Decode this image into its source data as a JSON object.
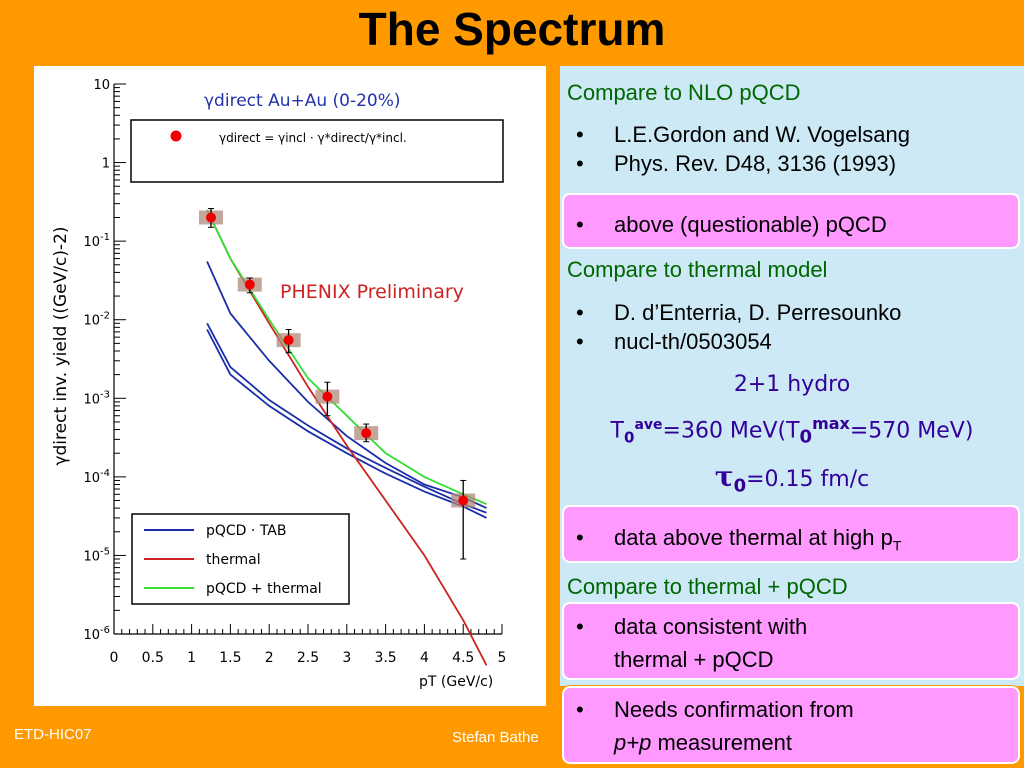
{
  "title": "The Spectrum",
  "footer_left": "ETD-HIC07",
  "footer_mid": "Stefan Bathe",
  "right": {
    "heading1": "Compare to NLO pQCD",
    "bullets1": [
      "L.E.Gordon and W. Vogelsang",
      "Phys. Rev. D48, 3136 (1993)"
    ],
    "pink1": "above (questionable) pQCD",
    "heading2": "Compare to thermal model",
    "bullets2": [
      "D. d’Enterria, D. Perresounko",
      "nucl-th/0503054"
    ],
    "hydro_line1": "2+1 hydro",
    "hydro_T_sym": "T",
    "hydro_T_sub": "0",
    "hydro_T_sup": "ave",
    "hydro_T_val": "=360 MeV(T",
    "hydro_Tmax_sub": "0",
    "hydro_Tmax_sup": "max",
    "hydro_Tmax_val": "=570 MeV)",
    "hydro_tau_sym": "τ",
    "hydro_tau_sub": "0",
    "hydro_tau_val": "=0.15 fm/c",
    "pink2_text": "data above thermal at high p",
    "pink2_sub": "T",
    "heading3": "Compare to thermal + pQCD",
    "pink3_line1": "data consistent with",
    "pink3_line2": "thermal + pQCD",
    "pink4_line1": "Needs confirmation from",
    "pink4_italic": "p+p",
    "pink4_rest": " measurement"
  },
  "chart_data": {
    "type": "line",
    "title": "γdirect Au+Au (0-20%)",
    "formula": "γdirect = γincl · γ*direct/γ*incl.",
    "annotation": "PHENIX Preliminary",
    "xlabel": "pT (GeV/c)",
    "ylabel": "γdirect inv. yield ((GeV/c)-2)",
    "xlim": [
      0,
      5
    ],
    "ylim": [
      1e-06,
      10
    ],
    "yscale": "log",
    "xticks": [
      "0",
      "0.5",
      "1",
      "1.5",
      "2",
      "2.5",
      "3",
      "3.5",
      "4",
      "4.5",
      "5"
    ],
    "yticks": [
      "10",
      "1",
      "10-1",
      "10-2",
      "10-3",
      "10-4",
      "10-5",
      "10-6"
    ],
    "data_points": [
      {
        "x": 1.25,
        "y": 0.2,
        "err_low": 0.15,
        "err_high": 0.26
      },
      {
        "x": 1.75,
        "y": 0.028,
        "err_low": 0.022,
        "err_high": 0.034
      },
      {
        "x": 2.25,
        "y": 0.0055,
        "err_low": 0.0038,
        "err_high": 0.0075
      },
      {
        "x": 2.75,
        "y": 0.00105,
        "err_low": 0.0006,
        "err_high": 0.0016
      },
      {
        "x": 3.25,
        "y": 0.00036,
        "err_low": 0.00028,
        "err_high": 0.00047
      },
      {
        "x": 4.5,
        "y": 5e-05,
        "err_low": 9e-06,
        "err_high": 9e-05
      }
    ],
    "series": [
      {
        "name": "pQCD · TAB",
        "color": "#1a2ea8",
        "x": [
          1.2,
          1.5,
          2,
          2.5,
          3,
          3.5,
          4,
          4.5,
          4.8
        ],
        "y": [
          0.055,
          0.012,
          0.003,
          0.0009,
          0.00033,
          0.00015,
          8e-05,
          5.5e-05,
          4e-05
        ]
      },
      {
        "name": "",
        "color": "#1a2ea8",
        "x": [
          1.2,
          1.5,
          2,
          2.5,
          3,
          3.5,
          4,
          4.5,
          4.8
        ],
        "y": [
          0.009,
          0.0025,
          0.00095,
          0.00045,
          0.00023,
          0.00013,
          7.5e-05,
          4.5e-05,
          3.5e-05
        ]
      },
      {
        "name": "",
        "color": "#1a2ea8",
        "x": [
          1.2,
          1.5,
          2,
          2.5,
          3,
          3.5,
          4,
          4.5,
          4.8
        ],
        "y": [
          0.0075,
          0.002,
          0.0008,
          0.00038,
          0.0002,
          0.00011,
          6.5e-05,
          4.2e-05,
          3e-05
        ]
      },
      {
        "name": "thermal",
        "color": "#cc2222",
        "x": [
          1.2,
          1.5,
          2,
          2.5,
          3,
          3.5,
          4,
          4.5,
          4.8
        ],
        "y": [
          0.25,
          0.06,
          0.009,
          0.0014,
          0.00025,
          5e-05,
          1e-05,
          1.5e-06,
          4e-07
        ]
      },
      {
        "name": "pQCD + thermal",
        "color": "#33dd33",
        "x": [
          1.2,
          1.5,
          2,
          2.5,
          3,
          3.5,
          4,
          4.5,
          4.8
        ],
        "y": [
          0.25,
          0.06,
          0.01,
          0.0018,
          0.0006,
          0.0002,
          0.0001,
          6e-05,
          4.5e-05
        ]
      }
    ],
    "legend_placement": "bottom-left"
  }
}
